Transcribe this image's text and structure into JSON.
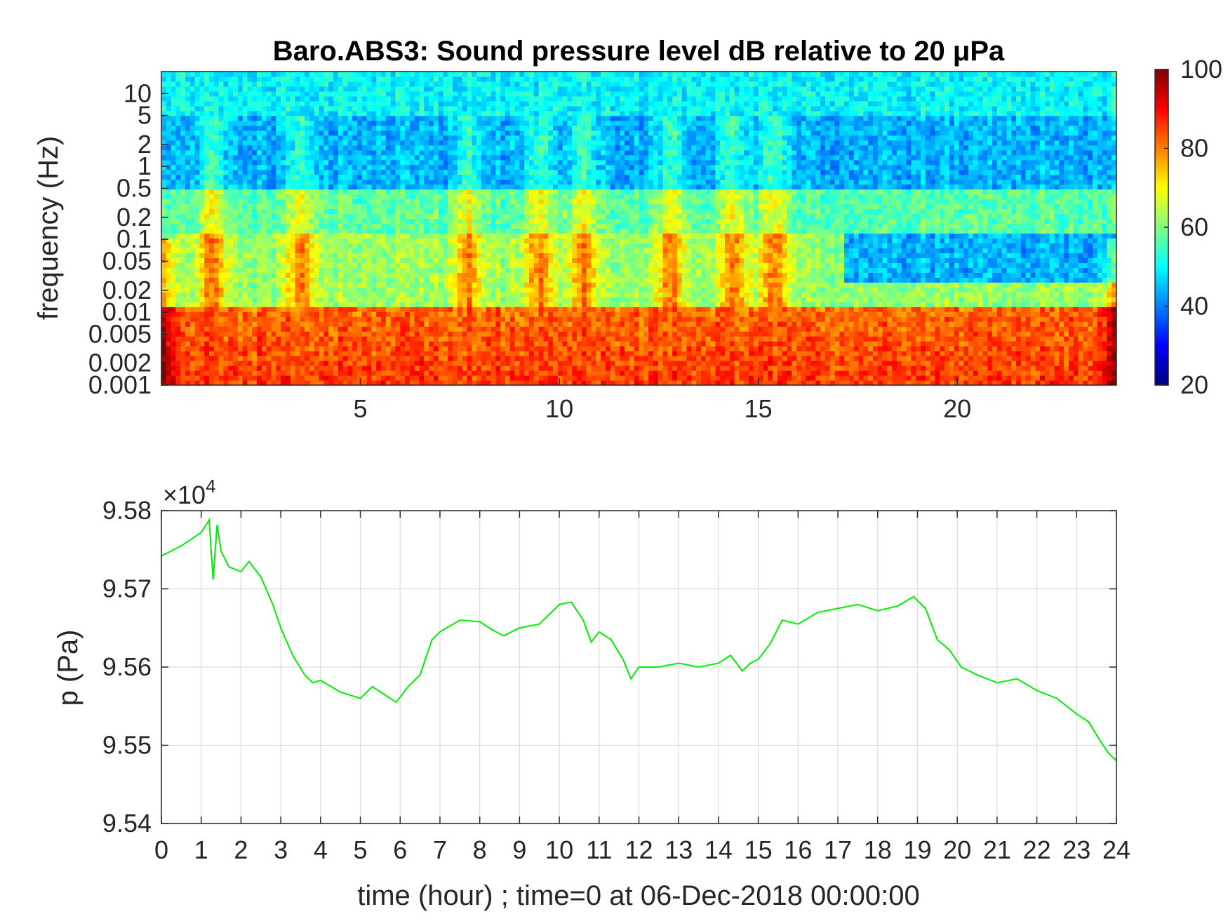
{
  "chart_data": [
    {
      "type": "heatmap",
      "title": "Baro.ABS3: Sound pressure level dB relative to 20 μPa",
      "ylabel": "frequency (Hz)",
      "xlabel": "",
      "xlim": [
        0,
        24
      ],
      "ylim": [
        0.001,
        20
      ],
      "y_scale": "log",
      "x_ticks": [
        "5",
        "10",
        "15",
        "20"
      ],
      "y_ticks": [
        "0.001",
        "0.002",
        "0.005",
        "0.01",
        "0.02",
        "0.05",
        "0.1",
        "0.2",
        "0.5",
        "1",
        "2",
        "5",
        "10"
      ],
      "colorbar": {
        "colormap": "jet",
        "range": [
          20,
          100
        ],
        "ticks": [
          "20",
          "40",
          "60",
          "80",
          "100"
        ],
        "placement": "right"
      },
      "approx_levels_db": [
        {
          "frequency_band": "5-20 Hz",
          "level": 50
        },
        {
          "frequency_band": "0.5-5 Hz",
          "level": 45
        },
        {
          "frequency_band": "0.02-0.5 Hz",
          "level": 62
        },
        {
          "frequency_band": "0.001-0.01 Hz",
          "level": 88
        }
      ]
    },
    {
      "type": "line",
      "xlabel": "time (hour) ; time=0 at 06-Dec-2018 00:00:00",
      "ylabel": "p (Pa)",
      "y_multiplier": "×10",
      "y_multiplier_exponent": "4",
      "xlim": [
        0,
        24
      ],
      "ylim": [
        9.54,
        9.58
      ],
      "grid": true,
      "line_color": "#00ee00",
      "x_ticks": [
        "0",
        "1",
        "2",
        "3",
        "4",
        "5",
        "6",
        "7",
        "8",
        "9",
        "10",
        "11",
        "12",
        "13",
        "14",
        "15",
        "16",
        "17",
        "18",
        "19",
        "20",
        "21",
        "22",
        "23",
        "24"
      ],
      "y_ticks": [
        "9.54",
        "9.55",
        "9.56",
        "9.57",
        "9.58"
      ],
      "series": [
        {
          "x": [
            0,
            0.5,
            1.0,
            1.2,
            1.3,
            1.4,
            1.5,
            1.7,
            2.0,
            2.2,
            2.5,
            2.8,
            3.0,
            3.3,
            3.6,
            3.8,
            4.0,
            4.5,
            5.0,
            5.3,
            5.6,
            5.9,
            6.2,
            6.5,
            6.8,
            7.0,
            7.5,
            8.0,
            8.3,
            8.6,
            9.0,
            9.5,
            10.0,
            10.3,
            10.6,
            10.8,
            11.0,
            11.3,
            11.6,
            11.8,
            12.0,
            12.5,
            13.0,
            13.5,
            14.0,
            14.3,
            14.6,
            14.8,
            15.0,
            15.3,
            15.6,
            16.0,
            16.5,
            17.0,
            17.5,
            18.0,
            18.5,
            18.9,
            19.2,
            19.5,
            19.8,
            20.1,
            20.5,
            21.0,
            21.5,
            22.0,
            22.5,
            23.0,
            23.3,
            23.6,
            23.8,
            24.0
          ],
          "y": [
            9.5742,
            9.5755,
            9.5772,
            9.5788,
            9.5712,
            9.5782,
            9.5748,
            9.5728,
            9.5722,
            9.5735,
            9.5715,
            9.568,
            9.565,
            9.5615,
            9.559,
            9.558,
            9.5583,
            9.5568,
            9.556,
            9.5575,
            9.5565,
            9.5555,
            9.5575,
            9.559,
            9.5635,
            9.5645,
            9.566,
            9.5658,
            9.5648,
            9.564,
            9.565,
            9.5655,
            9.568,
            9.5683,
            9.566,
            9.5632,
            9.5645,
            9.5635,
            9.561,
            9.5585,
            9.56,
            9.56,
            9.5605,
            9.56,
            9.5605,
            9.5615,
            9.5595,
            9.5605,
            9.561,
            9.563,
            9.566,
            9.5655,
            9.567,
            9.5675,
            9.568,
            9.5672,
            9.5678,
            9.569,
            9.5675,
            9.5635,
            9.5622,
            9.56,
            9.559,
            9.558,
            9.5585,
            9.557,
            9.556,
            9.554,
            9.553,
            9.5505,
            9.549,
            9.548
          ]
        }
      ]
    }
  ]
}
